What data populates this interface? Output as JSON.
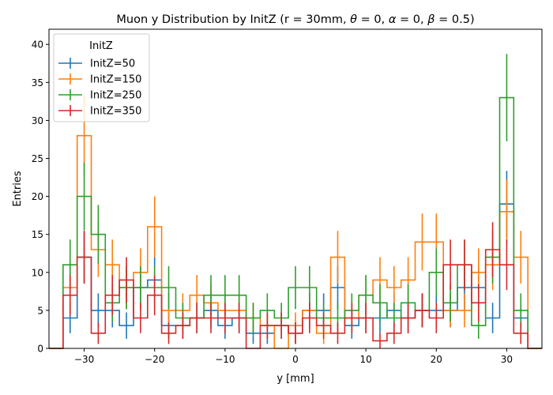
{
  "chart_data": {
    "type": "histogram-step",
    "title": "Muon y Distribution by InitZ (r = 30mm, θ = 0, α = 0, β = 0.5)",
    "title_pre": "Muon y Distribution by InitZ (r = 30mm, ",
    "title_math": [
      {
        "t": "θ",
        "italic": true
      },
      {
        "t": " = 0, ",
        "italic": false
      },
      {
        "t": "α",
        "italic": true
      },
      {
        "t": " = 0, ",
        "italic": false
      },
      {
        "t": "β",
        "italic": true
      },
      {
        "t": " = 0.5",
        "italic": false
      }
    ],
    "title_post": ")",
    "xlabel": "y [mm]",
    "ylabel": "Entries",
    "xlim": [
      -35,
      35
    ],
    "ylim": [
      0,
      42
    ],
    "xticks": [
      -30,
      -20,
      -10,
      0,
      10,
      20,
      30
    ],
    "yticks": [
      0,
      5,
      10,
      15,
      20,
      25,
      30,
      35,
      40
    ],
    "bin_edges": [
      -35,
      -33,
      -31,
      -29,
      -27,
      -25,
      -23,
      -21,
      -19,
      -17,
      -15,
      -13,
      -11,
      -9,
      -7,
      -5,
      -3,
      -1,
      1,
      3,
      5,
      7,
      9,
      11,
      13,
      15,
      17,
      19,
      21,
      23,
      25,
      27,
      29,
      31,
      33,
      35
    ],
    "bin_centers": [
      -34,
      -32,
      -30,
      -28,
      -26,
      -24,
      -22,
      -20,
      -18,
      -16,
      -14,
      -12,
      -10,
      -8,
      -6,
      -4,
      -2,
      0,
      2,
      4,
      6,
      8,
      10,
      12,
      14,
      16,
      18,
      20,
      22,
      24,
      26,
      28,
      30,
      32,
      34
    ],
    "legend": {
      "title": "InitZ",
      "placement": "upper-left"
    },
    "series": [
      {
        "name": "InitZ=50",
        "color": "#1f77b4",
        "values": [
          0,
          4,
          12,
          5,
          5,
          3,
          8,
          9,
          3,
          3,
          4,
          5,
          3,
          4,
          2,
          2,
          3,
          2,
          5,
          5,
          8,
          3,
          4,
          4,
          5,
          4,
          5,
          5,
          5,
          8,
          8,
          4,
          19,
          4,
          0
        ]
      },
      {
        "name": "InitZ=150",
        "color": "#ff7f0e",
        "values": [
          0,
          8,
          28,
          13,
          11,
          8,
          10,
          16,
          5,
          5,
          7,
          6,
          5,
          5,
          4,
          3,
          0,
          3,
          5,
          2,
          12,
          4,
          7,
          9,
          8,
          9,
          14,
          14,
          5,
          5,
          10,
          11,
          18,
          12,
          0
        ]
      },
      {
        "name": "InitZ=250",
        "color": "#2ca02c",
        "values": [
          0,
          11,
          20,
          15,
          6,
          8,
          8,
          8,
          8,
          4,
          4,
          7,
          7,
          7,
          4,
          5,
          4,
          8,
          8,
          4,
          4,
          5,
          7,
          6,
          4,
          6,
          5,
          10,
          6,
          11,
          3,
          12,
          33,
          5,
          0
        ]
      },
      {
        "name": "InitZ=350",
        "color": "#d62728",
        "values": [
          0,
          7,
          12,
          2,
          7,
          9,
          4,
          7,
          2,
          3,
          4,
          4,
          4,
          4,
          0,
          3,
          3,
          2,
          4,
          3,
          2,
          4,
          4,
          1,
          2,
          4,
          5,
          4,
          11,
          11,
          6,
          13,
          11,
          2,
          0
        ]
      }
    ]
  }
}
